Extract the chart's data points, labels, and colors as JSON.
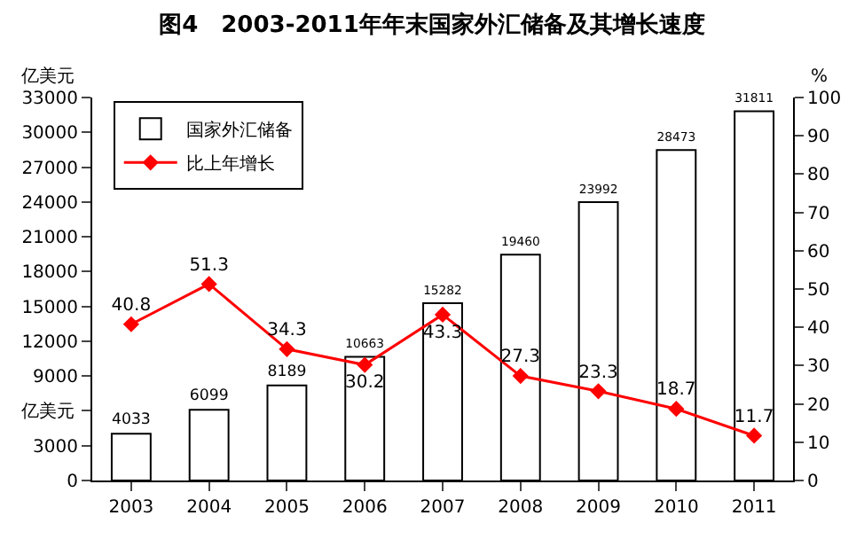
{
  "chart_data": {
    "type": "bar",
    "title": "图4　2003-2011年年末国家外汇储备及其增长速度",
    "ylabel": "亿美元",
    "y2label": "%",
    "annotations": [
      "亿美元"
    ],
    "categories": [
      "2003",
      "2004",
      "2005",
      "2006",
      "2007",
      "2008",
      "2009",
      "2010",
      "2011"
    ],
    "series": [
      {
        "name": "国家外汇储备",
        "color": "#ffffff",
        "values": [
          4033,
          6099,
          8189,
          10663,
          15282,
          19460,
          23992,
          28473,
          31811
        ]
      },
      {
        "name": "比上年增长",
        "type": "line",
        "axis": "y2",
        "color": "#ff0000",
        "marker": "diamond",
        "values": [
          40.8,
          51.3,
          34.3,
          30.2,
          43.3,
          27.3,
          23.3,
          18.7,
          11.7
        ]
      }
    ],
    "ylim": [
      0,
      33000
    ],
    "yticks": [
      0,
      3000,
      {
        "value": 6000,
        "label": null
      },
      9000,
      12000,
      15000,
      18000,
      21000,
      24000,
      27000,
      30000,
      33000
    ],
    "y2lim": [
      0,
      100
    ],
    "y2ticks": [
      0,
      10,
      20,
      30,
      40,
      50,
      60,
      70,
      80,
      90,
      100
    ],
    "data_labels": true,
    "legend": "top left"
  }
}
